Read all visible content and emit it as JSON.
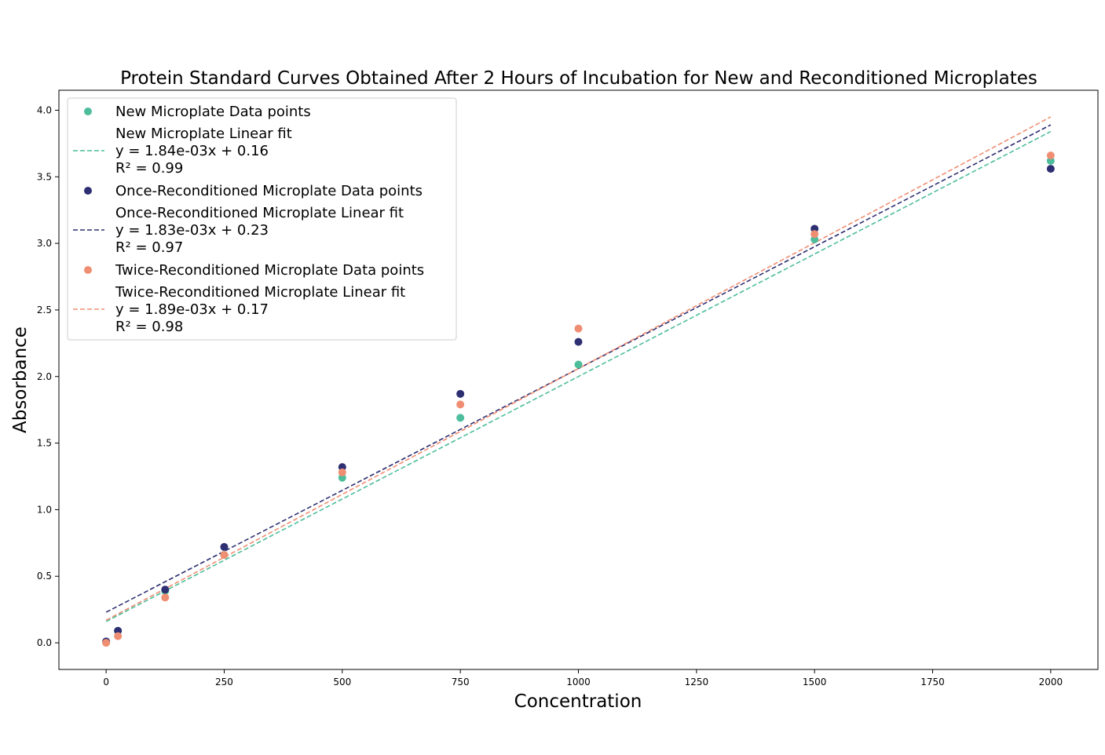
{
  "chart_data": {
    "type": "scatter",
    "title": "Protein Standard Curves Obtained After 2 Hours of Incubation for New and Reconditioned Microplates",
    "xlabel": "Concentration",
    "ylabel": "Absorbance",
    "xlim": [
      -100,
      2100
    ],
    "ylim": [
      -0.2,
      4.15
    ],
    "xticks": [
      0,
      250,
      500,
      750,
      1000,
      1250,
      1500,
      1750,
      2000
    ],
    "yticks": [
      0.0,
      0.5,
      1.0,
      1.5,
      2.0,
      2.5,
      3.0,
      3.5,
      4.0
    ],
    "xtick_labels": [
      "0",
      "250",
      "500",
      "750",
      "1000",
      "1250",
      "1500",
      "1750",
      "2000"
    ],
    "ytick_labels": [
      "0.0",
      "0.5",
      "1.0",
      "1.5",
      "2.0",
      "2.5",
      "3.0",
      "3.5",
      "4.0"
    ],
    "grid": false,
    "legend_position": "top-left",
    "x": [
      0,
      25,
      125,
      250,
      500,
      750,
      1000,
      1500,
      2000
    ],
    "series": [
      {
        "name": "New Microplate Data points",
        "fit_label": "New Microplate Linear fit",
        "equation": "y = 1.84e-03x + 0.16",
        "r2": "R² = 0.99",
        "slope": 0.00184,
        "intercept": 0.16,
        "color": "#4dbd9b",
        "values": [
          0.01,
          0.09,
          0.39,
          0.66,
          1.24,
          1.69,
          2.09,
          3.03,
          3.62
        ]
      },
      {
        "name": "Once-Reconditioned Microplate Data points",
        "fit_label": "Once-Reconditioned Microplate Linear fit",
        "equation": "y = 1.83e-03x + 0.23",
        "r2": "R² = 0.97",
        "slope": 0.00183,
        "intercept": 0.23,
        "color": "#2e2f72",
        "values": [
          0.01,
          0.09,
          0.4,
          0.72,
          1.32,
          1.87,
          2.26,
          3.11,
          3.56
        ]
      },
      {
        "name": "Twice-Reconditioned Microplate Data points",
        "fit_label": "Twice-Reconditioned Microplate Linear fit",
        "equation": "y = 1.89e-03x + 0.17",
        "r2": "R² = 0.98",
        "slope": 0.00189,
        "intercept": 0.17,
        "color": "#ef8e72",
        "values": [
          0.0,
          0.05,
          0.34,
          0.66,
          1.28,
          1.79,
          2.36,
          3.07,
          3.66
        ]
      }
    ]
  }
}
